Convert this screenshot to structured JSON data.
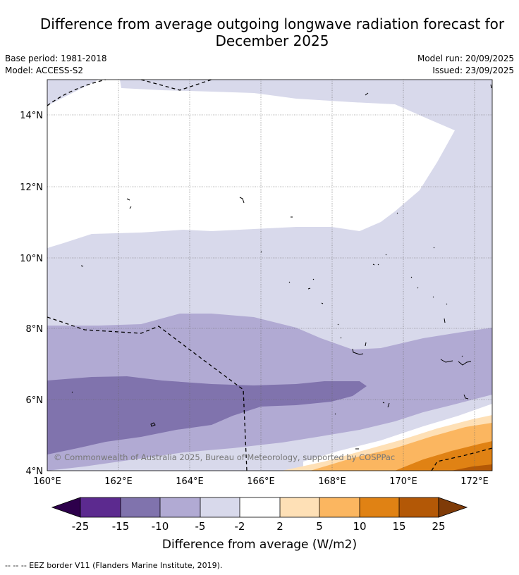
{
  "header": {
    "title_line1": "Difference from average outgoing longwave radiation forecast for",
    "title_line2": "December 2025",
    "base_period": "Base period: 1981-2018",
    "model": "Model: ACCESS-S2",
    "model_run": "Model run: 20/09/2025",
    "issued": "Issued: 23/09/2025"
  },
  "map": {
    "lat_labels": [
      "14°N",
      "12°N",
      "10°N",
      "8°N",
      "6°N",
      "4°N"
    ],
    "lon_labels": [
      "160°E",
      "162°E",
      "164°E",
      "166°E",
      "168°E",
      "170°E",
      "172°E"
    ],
    "copyright": "© Commonwealth of Australia 2025, Bureau of Meteorology, supported by COSPPac"
  },
  "colorbar": {
    "ticks": [
      "-25",
      "-15",
      "-10",
      "-5",
      "-2",
      "2",
      "5",
      "10",
      "15",
      "25"
    ],
    "label": "Difference from average (W/m2)",
    "colors": {
      "below_-25": "#2d004b",
      "-25_-15": "#5c2a8f",
      "-15_-10": "#8073ad",
      "-10_-5": "#b1aad3",
      "-5_-2": "#d8d9eb",
      "-2_2": "#ffffff",
      "2_5": "#fee0b6",
      "5_10": "#fbb660",
      "10_15": "#e08214",
      "15_25": "#b35806",
      "above_25": "#7f3b08"
    }
  },
  "footer": {
    "legend_text": "--  --  -- EEZ border V11 (Flanders Marine Institute, 2019)."
  }
}
